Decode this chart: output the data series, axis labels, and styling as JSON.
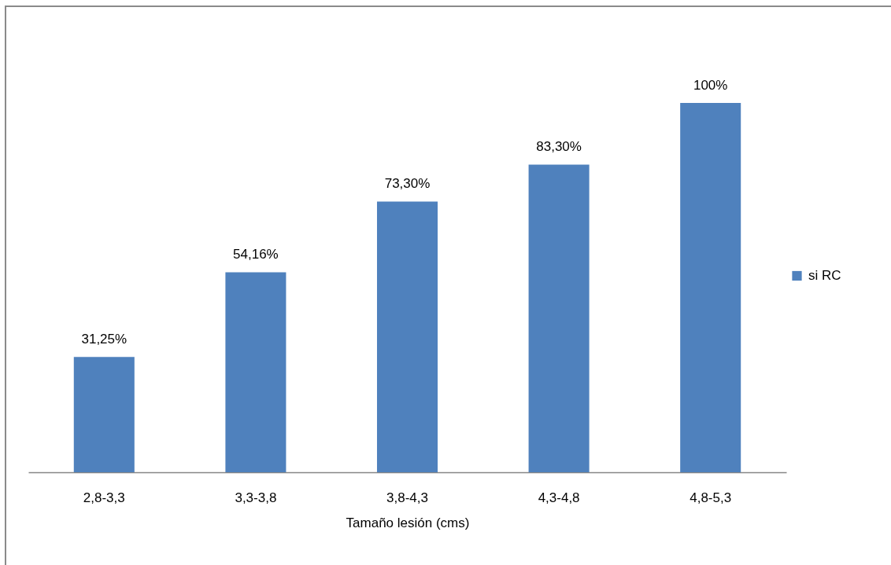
{
  "chart_data": {
    "type": "bar",
    "xlabel": "Tamaño lesión (cms)",
    "categories": [
      "2,8-3,3",
      "3,3-3,8",
      "3,8-4,3",
      "4,3-4,8",
      "4,8-5,3"
    ],
    "series": [
      {
        "name": "si RC",
        "color": "#4f81bd",
        "values": [
          31.25,
          54.16,
          73.3,
          83.3,
          100
        ],
        "value_labels": [
          "31,25%",
          "54,16%",
          "73,30%",
          "83,30%",
          "100%"
        ]
      }
    ],
    "legend": "right",
    "tick_labels": "x"
  }
}
